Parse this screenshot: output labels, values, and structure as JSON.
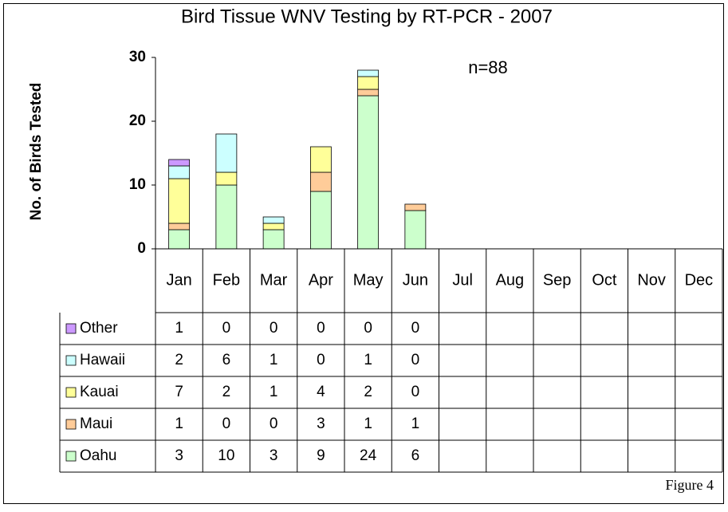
{
  "chart_data": {
    "type": "bar",
    "stacked": true,
    "title": "Bird Tissue WNV Testing by RT-PCR - 2007",
    "annotation": "n=88",
    "y_label": "No. of Birds Tested",
    "caption": "Figure 4",
    "categories": [
      "Jan",
      "Feb",
      "Mar",
      "Apr",
      "May",
      "Jun",
      "Jul",
      "Aug",
      "Sep",
      "Oct",
      "Nov",
      "Dec"
    ],
    "series": [
      {
        "name": "Other",
        "color": "#cc99ff",
        "values": [
          1,
          0,
          0,
          0,
          0,
          0,
          null,
          null,
          null,
          null,
          null,
          null
        ]
      },
      {
        "name": "Hawaii",
        "color": "#ccffff",
        "values": [
          2,
          6,
          1,
          0,
          1,
          0,
          null,
          null,
          null,
          null,
          null,
          null
        ]
      },
      {
        "name": "Kauai",
        "color": "#ffff99",
        "values": [
          7,
          2,
          1,
          4,
          2,
          0,
          null,
          null,
          null,
          null,
          null,
          null
        ]
      },
      {
        "name": "Maui",
        "color": "#ffcc99",
        "values": [
          1,
          0,
          0,
          3,
          1,
          1,
          null,
          null,
          null,
          null,
          null,
          null
        ]
      },
      {
        "name": "Oahu",
        "color": "#ccffcc",
        "values": [
          3,
          10,
          3,
          9,
          24,
          6,
          null,
          null,
          null,
          null,
          null,
          null
        ]
      }
    ],
    "ylim": [
      0,
      30
    ],
    "yticks": [
      0,
      10,
      20,
      30
    ],
    "grid": false
  }
}
